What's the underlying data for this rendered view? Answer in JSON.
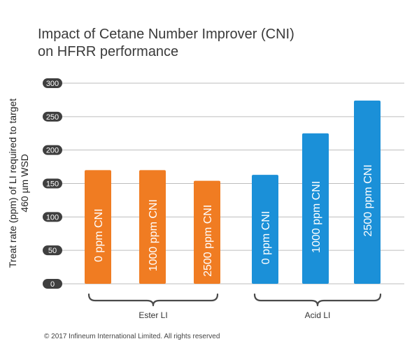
{
  "chart_data": {
    "type": "bar",
    "title_line1": "Impact of Cetane Number Improver (CNI)",
    "title_line2": "on HFRR performance",
    "ylabel_line1": "Treat rate (ppm) of LI required to target",
    "ylabel_line2": "460 µm WSD",
    "ylim": [
      0,
      300
    ],
    "yticks": [
      "0",
      "50",
      "100",
      "150",
      "200",
      "250",
      "300"
    ],
    "grid": true,
    "bars": [
      {
        "label": "0 ppm CNI",
        "group": "Ester LI",
        "value": 170,
        "color": "#f07c22"
      },
      {
        "label": "1000 ppm CNI",
        "group": "Ester LI",
        "value": 170,
        "color": "#f07c22"
      },
      {
        "label": "2500 ppm CNI",
        "group": "Ester LI",
        "value": 154,
        "color": "#f07c22"
      },
      {
        "label": "0 ppm CNI",
        "group": "Acid LI",
        "value": 163,
        "color": "#1b90d8"
      },
      {
        "label": "1000 ppm CNI",
        "group": "Acid LI",
        "value": 225,
        "color": "#1b90d8"
      },
      {
        "label": "2500 ppm CNI",
        "group": "Acid LI",
        "value": 274,
        "color": "#1b90d8"
      }
    ],
    "groups": [
      "Ester LI",
      "Acid LI"
    ]
  },
  "footer": {
    "copyright": "© 2017 Infineum International Limited. All rights reserved"
  }
}
